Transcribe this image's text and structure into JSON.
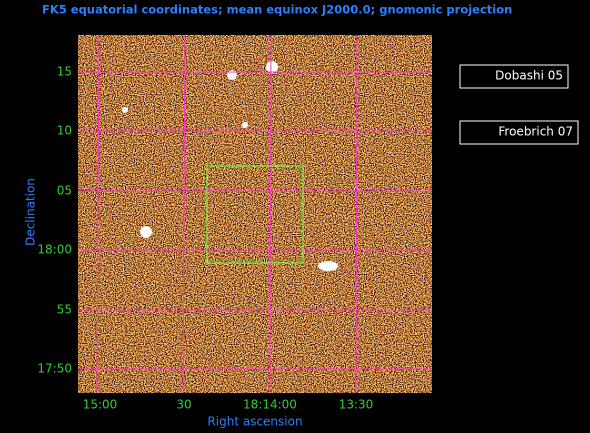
{
  "header": {
    "title": "FK5 equatorial coordinates; mean equinox J2000.0; gnomonic projection"
  },
  "axes": {
    "x_label": "Right ascension",
    "y_label": "Declination",
    "x_ticks": [
      "15:00",
      "30",
      "18:14:00",
      "13:30"
    ],
    "y_ticks": [
      "15",
      "10",
      "05",
      "18:00",
      "55",
      "17:50"
    ]
  },
  "buttons": [
    "Dobashi 05",
    "Froebrich 07"
  ]
}
